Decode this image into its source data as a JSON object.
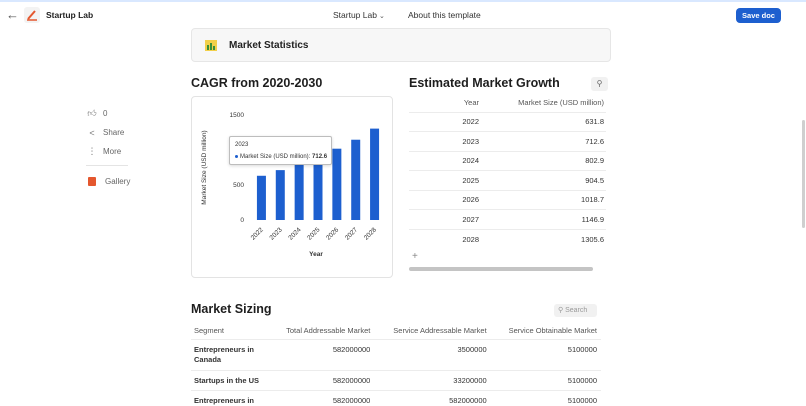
{
  "header": {
    "app_title": "Startup Lab",
    "nav_primary": "Startup Lab",
    "nav_about": "About this template",
    "save_label": "Save doc"
  },
  "sidebar": {
    "like_count": "0",
    "share_label": "Share",
    "more_label": "More",
    "gallery_label": "Gallery"
  },
  "section_banner": {
    "title": "Market Statistics"
  },
  "cagr": {
    "title": "CAGR from 2020-2030"
  },
  "chart_data": {
    "type": "bar",
    "categories": [
      "2022",
      "2023",
      "2024",
      "2025",
      "2026",
      "2027",
      "2028"
    ],
    "values": [
      631.8,
      712.6,
      802.9,
      904.5,
      1018.7,
      1146.9,
      1305.6
    ],
    "xlabel": "Year",
    "ylabel": "Market Size (USD million)",
    "ylim": [
      0,
      1500
    ],
    "yticks": [
      "0",
      "500",
      "1000",
      "1500"
    ],
    "bar_color": "#1d5fcf",
    "grid": false,
    "tooltip": {
      "category": "2023",
      "series_label": "Market Size (USD million):",
      "value": "712.6"
    }
  },
  "growth": {
    "title": "Estimated Market Growth",
    "col_year": "Year",
    "col_size": "Market Size (USD million)",
    "rows": [
      {
        "year": "2022",
        "size": "631.8"
      },
      {
        "year": "2023",
        "size": "712.6"
      },
      {
        "year": "2024",
        "size": "802.9"
      },
      {
        "year": "2025",
        "size": "904.5"
      },
      {
        "year": "2026",
        "size": "1018.7"
      },
      {
        "year": "2027",
        "size": "1146.9"
      },
      {
        "year": "2028",
        "size": "1305.6"
      }
    ],
    "add_label": "+"
  },
  "sizing": {
    "title": "Market Sizing",
    "search_placeholder": "Search",
    "columns": [
      "Segment",
      "Total Addressable Market",
      "Service Addressable Market",
      "Service Obtainable Market"
    ],
    "rows": [
      {
        "segment": "Entrepreneurs in Canada",
        "tam": "582000000",
        "sam": "3500000",
        "som": "5100000"
      },
      {
        "segment": "Startups in the US",
        "tam": "582000000",
        "sam": "33200000",
        "som": "5100000"
      },
      {
        "segment": "Entrepreneurs in the",
        "tam": "582000000",
        "sam": "582000000",
        "som": "5100000"
      }
    ]
  },
  "colors": {
    "accent": "#1d5fcf",
    "gallery": "#e4572e"
  }
}
